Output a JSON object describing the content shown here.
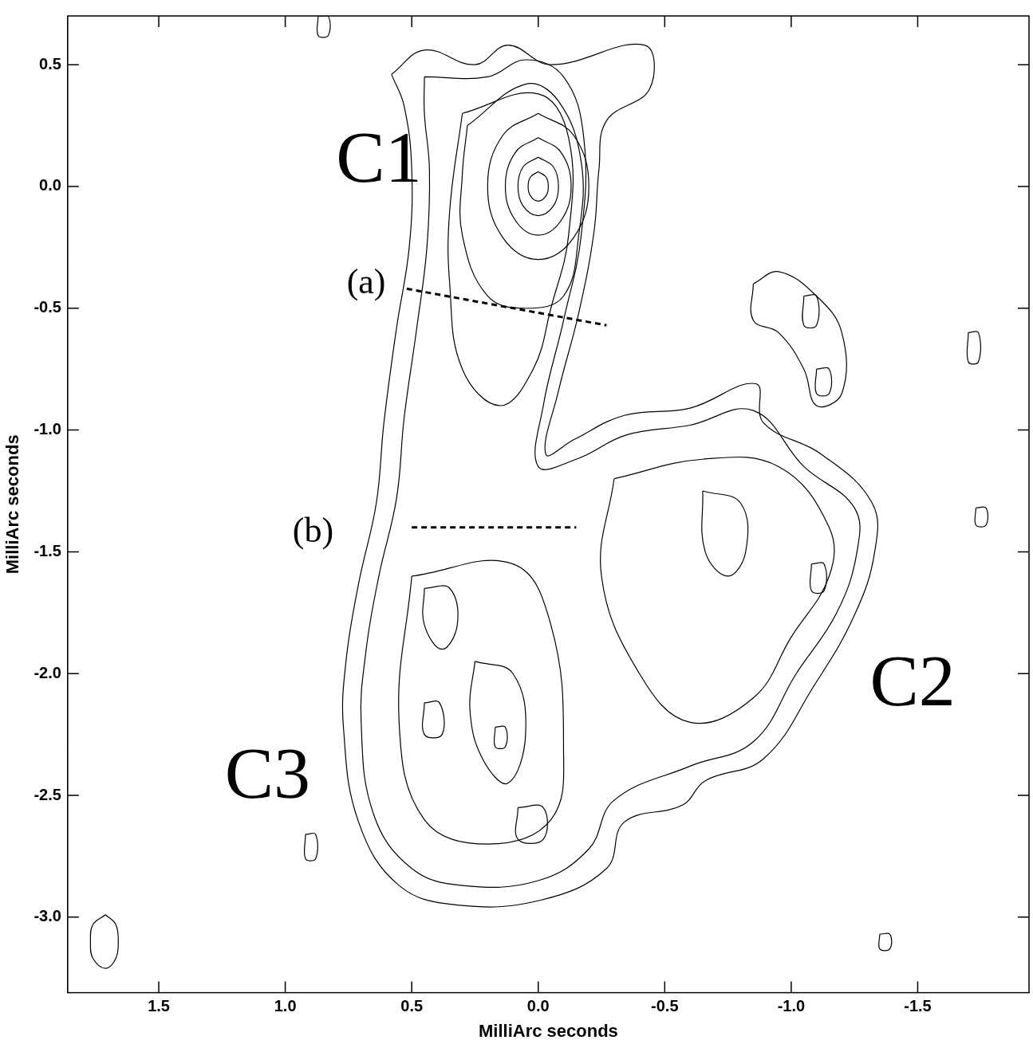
{
  "chart_data": {
    "type": "contour",
    "xlabel": "MilliArc seconds",
    "ylabel": "MilliArc seconds",
    "xlim": [
      1.86,
      -1.94
    ],
    "ylim": [
      -3.31,
      0.7
    ],
    "xticks": [
      1.5,
      {
        "value": 1,
        "label": "1.0"
      },
      0.5,
      {
        "value": 0,
        "label": "0.0"
      },
      -0.5,
      {
        "value": -1,
        "label": "-1.0"
      },
      -1.5
    ],
    "yticks": [
      0.5,
      {
        "value": 0,
        "label": "0.0"
      },
      -0.5,
      {
        "value": -1,
        "label": "-1.0"
      },
      -1.5,
      {
        "value": -2,
        "label": "-2.0"
      },
      -2.5,
      {
        "value": -3,
        "label": "-3.0"
      }
    ],
    "grid": false,
    "color": "#000000",
    "contours": [
      [
        [
          0.58,
          0.46
        ],
        [
          0.45,
          0.56
        ],
        [
          0.25,
          0.5
        ],
        [
          0.12,
          0.58
        ],
        [
          -0.05,
          0.5
        ],
        [
          -0.42,
          0.58
        ],
        [
          -0.44,
          0.4
        ],
        [
          -0.27,
          0.27
        ],
        [
          -0.24,
          0.07
        ],
        [
          -0.22,
          -0.19
        ],
        [
          -0.16,
          -0.52
        ],
        [
          -0.08,
          -0.84
        ],
        [
          -0.03,
          -1.1
        ],
        [
          -0.14,
          -1.04
        ],
        [
          -0.34,
          -0.94
        ],
        [
          -0.6,
          -0.91
        ],
        [
          -0.86,
          -0.81
        ],
        [
          -0.89,
          -0.97
        ],
        [
          -1.12,
          -1.1
        ],
        [
          -1.32,
          -1.3
        ],
        [
          -1.33,
          -1.5
        ],
        [
          -1.25,
          -1.76
        ],
        [
          -1.09,
          -2.05
        ],
        [
          -0.89,
          -2.35
        ],
        [
          -0.66,
          -2.44
        ],
        [
          -0.57,
          -2.54
        ],
        [
          -0.34,
          -2.61
        ],
        [
          -0.27,
          -2.8
        ],
        [
          -0.01,
          -2.93
        ],
        [
          0.32,
          -2.95
        ],
        [
          0.55,
          -2.87
        ],
        [
          0.71,
          -2.61
        ],
        [
          0.77,
          -2.22
        ],
        [
          0.76,
          -1.95
        ],
        [
          0.71,
          -1.63
        ],
        [
          0.64,
          -1.3
        ],
        [
          0.61,
          -0.97
        ],
        [
          0.56,
          -0.58
        ],
        [
          0.51,
          -0.25
        ],
        [
          0.5,
          0.07
        ],
        [
          0.53,
          0.33
        ]
      ],
      [
        [
          0.45,
          0.45
        ],
        [
          0.2,
          0.45
        ],
        [
          0.05,
          0.52
        ],
        [
          -0.1,
          0.45
        ],
        [
          -0.18,
          0.2
        ],
        [
          -0.17,
          -0.2
        ],
        [
          -0.1,
          -0.55
        ],
        [
          -0.02,
          -0.9
        ],
        [
          0.0,
          -1.15
        ],
        [
          -0.15,
          -1.12
        ],
        [
          -0.35,
          -1.02
        ],
        [
          -0.6,
          -0.98
        ],
        [
          -0.85,
          -0.92
        ],
        [
          -1.05,
          -1.15
        ],
        [
          -1.25,
          -1.32
        ],
        [
          -1.26,
          -1.5
        ],
        [
          -1.18,
          -1.75
        ],
        [
          -1.02,
          -2.0
        ],
        [
          -0.85,
          -2.28
        ],
        [
          -0.6,
          -2.38
        ],
        [
          -0.3,
          -2.52
        ],
        [
          -0.2,
          -2.72
        ],
        [
          0.0,
          -2.85
        ],
        [
          0.3,
          -2.87
        ],
        [
          0.5,
          -2.8
        ],
        [
          0.65,
          -2.58
        ],
        [
          0.7,
          -2.2
        ],
        [
          0.68,
          -1.9
        ],
        [
          0.63,
          -1.6
        ],
        [
          0.56,
          -1.28
        ],
        [
          0.53,
          -0.95
        ],
        [
          0.48,
          -0.58
        ],
        [
          0.44,
          -0.25
        ],
        [
          0.43,
          0.07
        ],
        [
          0.45,
          0.3
        ]
      ],
      [
        [
          0.3,
          0.3
        ],
        [
          0.0,
          0.38
        ],
        [
          -0.12,
          0.2
        ],
        [
          -0.12,
          -0.2
        ],
        [
          -0.05,
          -0.5
        ],
        [
          0.02,
          -0.75
        ],
        [
          0.15,
          -0.9
        ],
        [
          0.3,
          -0.75
        ],
        [
          0.35,
          -0.4
        ],
        [
          0.35,
          -0.1
        ]
      ],
      [
        [
          0.28,
          0.25
        ],
        [
          0.05,
          0.42
        ],
        [
          -0.08,
          0.35
        ],
        [
          -0.17,
          0.1
        ],
        [
          -0.16,
          -0.2
        ],
        [
          -0.1,
          -0.45
        ],
        [
          0.05,
          -0.5
        ],
        [
          0.2,
          -0.45
        ],
        [
          0.3,
          -0.2
        ],
        [
          0.3,
          0.05
        ]
      ],
      [
        [
          0,
          0.3
        ],
        [
          0.14,
          0.21
        ],
        [
          0.2,
          0
        ],
        [
          0.14,
          -0.21
        ],
        [
          0,
          -0.3
        ],
        [
          -0.14,
          -0.21
        ],
        [
          -0.2,
          0
        ],
        [
          -0.14,
          0.21
        ]
      ],
      [
        [
          0,
          0.2
        ],
        [
          0.09,
          0.14
        ],
        [
          0.13,
          0
        ],
        [
          0.09,
          -0.14
        ],
        [
          0,
          -0.2
        ],
        [
          -0.09,
          -0.14
        ],
        [
          -0.13,
          0
        ],
        [
          -0.09,
          0.14
        ]
      ],
      [
        [
          0,
          0.12
        ],
        [
          0.06,
          0.08
        ],
        [
          0.08,
          0
        ],
        [
          0.06,
          -0.08
        ],
        [
          0,
          -0.12
        ],
        [
          -0.06,
          -0.08
        ],
        [
          -0.08,
          0
        ],
        [
          -0.06,
          0.08
        ]
      ],
      [
        [
          0,
          0.06
        ],
        [
          0.03,
          0.04
        ],
        [
          0.04,
          0
        ],
        [
          0.03,
          -0.04
        ],
        [
          0,
          -0.06
        ],
        [
          -0.03,
          -0.04
        ],
        [
          -0.04,
          0
        ],
        [
          -0.03,
          0.04
        ]
      ],
      [
        [
          0.5,
          -1.6
        ],
        [
          0.1,
          -1.55
        ],
        [
          -0.05,
          -1.8
        ],
        [
          -0.1,
          -2.3
        ],
        [
          -0.05,
          -2.6
        ],
        [
          0.2,
          -2.7
        ],
        [
          0.45,
          -2.6
        ],
        [
          0.55,
          -2.2
        ]
      ],
      [
        [
          0.25,
          -1.95
        ],
        [
          0.1,
          -2.0
        ],
        [
          0.05,
          -2.25
        ],
        [
          0.12,
          -2.45
        ],
        [
          0.22,
          -2.35
        ],
        [
          0.27,
          -2.15
        ]
      ],
      [
        [
          0.17,
          -2.22
        ],
        [
          0.13,
          -2.22
        ],
        [
          0.13,
          -2.3
        ],
        [
          0.17,
          -2.3
        ]
      ],
      [
        [
          0.45,
          -1.65
        ],
        [
          0.35,
          -1.65
        ],
        [
          0.32,
          -1.8
        ],
        [
          0.38,
          -1.9
        ],
        [
          0.45,
          -1.8
        ]
      ],
      [
        [
          0.45,
          -2.12
        ],
        [
          0.39,
          -2.12
        ],
        [
          0.38,
          -2.25
        ],
        [
          0.45,
          -2.25
        ]
      ],
      [
        [
          0.08,
          -2.55
        ],
        [
          -0.02,
          -2.55
        ],
        [
          -0.02,
          -2.68
        ],
        [
          0.08,
          -2.68
        ]
      ],
      [
        [
          -0.3,
          -1.2
        ],
        [
          -0.65,
          -1.12
        ],
        [
          -0.95,
          -1.15
        ],
        [
          -1.15,
          -1.4
        ],
        [
          -1.15,
          -1.6
        ],
        [
          -1.0,
          -1.85
        ],
        [
          -0.85,
          -2.1
        ],
        [
          -0.6,
          -2.2
        ],
        [
          -0.4,
          -2.0
        ],
        [
          -0.25,
          -1.6
        ]
      ],
      [
        [
          -0.65,
          -1.25
        ],
        [
          -0.8,
          -1.3
        ],
        [
          -0.82,
          -1.5
        ],
        [
          -0.75,
          -1.6
        ],
        [
          -0.66,
          -1.5
        ]
      ],
      [
        [
          -1.08,
          -1.55
        ],
        [
          -1.13,
          -1.55
        ],
        [
          -1.13,
          -1.66
        ],
        [
          -1.08,
          -1.66
        ]
      ],
      [
        [
          -0.85,
          -0.4
        ],
        [
          -0.95,
          -0.35
        ],
        [
          -1.1,
          -0.45
        ],
        [
          -1.2,
          -0.6
        ],
        [
          -1.2,
          -0.85
        ],
        [
          -1.1,
          -0.9
        ],
        [
          -1.05,
          -0.75
        ],
        [
          -0.95,
          -0.6
        ],
        [
          -0.85,
          -0.55
        ]
      ],
      [
        [
          -1.05,
          -0.45
        ],
        [
          -1.1,
          -0.45
        ],
        [
          -1.1,
          -0.57
        ],
        [
          -1.05,
          -0.57
        ]
      ],
      [
        [
          -1.1,
          -0.75
        ],
        [
          -1.15,
          -0.75
        ],
        [
          -1.15,
          -0.85
        ],
        [
          -1.1,
          -0.85
        ]
      ],
      [
        [
          0.87,
          0.7
        ],
        [
          0.83,
          0.7
        ],
        [
          0.83,
          0.62
        ],
        [
          0.87,
          0.62
        ]
      ],
      [
        [
          0.92,
          -2.66
        ],
        [
          0.88,
          -2.66
        ],
        [
          0.88,
          -2.76
        ],
        [
          0.92,
          -2.76
        ]
      ],
      [
        [
          -1.7,
          -0.6
        ],
        [
          -1.74,
          -0.6
        ],
        [
          -1.74,
          -0.72
        ],
        [
          -1.7,
          -0.72
        ]
      ],
      [
        [
          -1.73,
          -1.32
        ],
        [
          -1.77,
          -1.32
        ],
        [
          -1.77,
          -1.39
        ],
        [
          -1.73,
          -1.39
        ]
      ],
      [
        [
          -1.35,
          -3.07
        ],
        [
          -1.39,
          -3.07
        ],
        [
          -1.39,
          -3.13
        ],
        [
          -1.35,
          -3.13
        ]
      ]
    ],
    "beam": [
      [
        1.71,
        -2.99
      ],
      [
        1.76,
        -3.03
      ],
      [
        1.77,
        -3.1
      ],
      [
        1.76,
        -3.17
      ],
      [
        1.71,
        -3.21
      ],
      [
        1.67,
        -3.17
      ],
      [
        1.66,
        -3.1
      ],
      [
        1.67,
        -3.03
      ]
    ],
    "cuts": [
      {
        "label": "(a)",
        "x": [
          0.52,
          -0.27
        ],
        "y": [
          -0.42,
          -0.57
        ],
        "line_style": "dashed"
      },
      {
        "label": "(b)",
        "x": [
          0.5,
          -0.15
        ],
        "y": [
          -1.4,
          -1.4
        ],
        "line_style": "dashed"
      }
    ],
    "annotations": [
      {
        "text": "C1",
        "x": 0.63,
        "y": 0.1
      },
      {
        "text": "C2",
        "x": -1.48,
        "y": -2.05
      },
      {
        "text": "C3",
        "x": 1.07,
        "y": -2.43
      },
      {
        "text": "(a)",
        "x": 0.68,
        "y": -0.4
      },
      {
        "text": "(b)",
        "x": 0.89,
        "y": -1.42
      }
    ]
  }
}
